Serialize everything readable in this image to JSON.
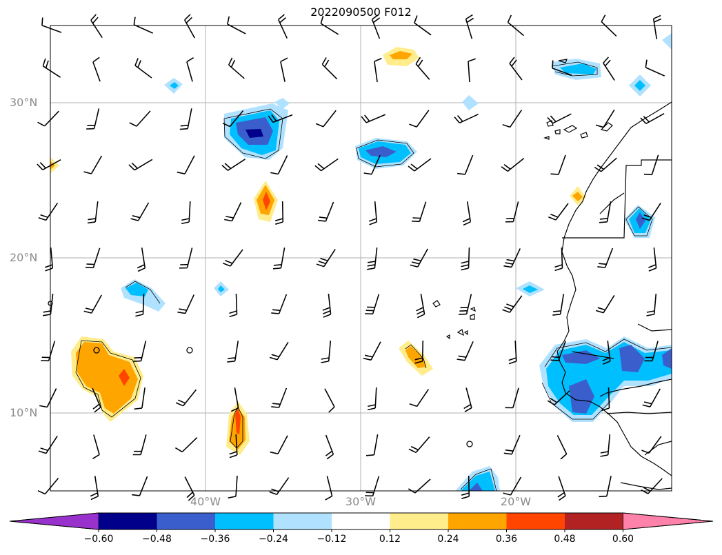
{
  "title": "2022090500 F012",
  "lat_labels": [
    "30°N",
    "20°N",
    "10°N"
  ],
  "lon_labels": [
    "40°W",
    "30°W",
    "20°W"
  ],
  "colorbar": {
    "tick_labels": [
      "−0.60",
      "−0.48",
      "−0.36",
      "−0.24",
      "−0.12",
      "0.12",
      "0.24",
      "0.36",
      "0.48",
      "0.60"
    ],
    "colors": [
      "#9932cc",
      "#00008b",
      "#3a5fcd",
      "#00bfff",
      "#b0e2ff",
      "#ffffff",
      "#ffec8b",
      "#ffa500",
      "#ff4500",
      "#b22222",
      "#ff82ab"
    ]
  },
  "colors": {
    "grid": "#b0b0b0",
    "coast": "#000000",
    "barb": "#000000"
  }
}
